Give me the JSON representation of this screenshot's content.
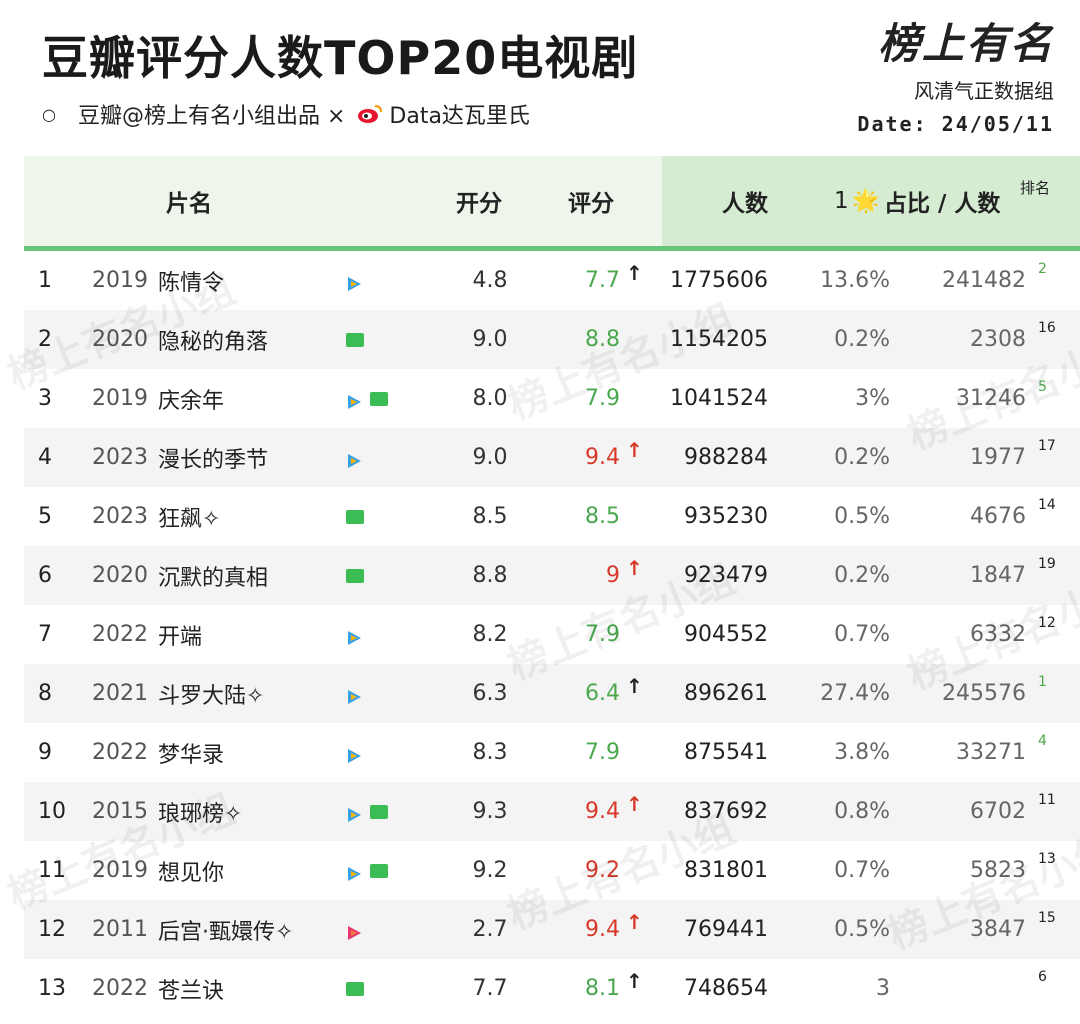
{
  "header": {
    "title": "豆瓣评分人数TOP20电视剧",
    "subtitle_left": "豆瓣@榜上有名小组出品 ×",
    "subtitle_right": "Data达瓦里氏"
  },
  "logo": {
    "brand": "榜上有名",
    "sub": "风清气正数据组",
    "date": "Date: 24/05/11"
  },
  "table": {
    "headers": {
      "name": "片名",
      "open": "开分",
      "score": "评分",
      "people": "人数",
      "share_prefix": "1",
      "share": "占比 / 人数",
      "rank": "排名"
    },
    "rows": [
      {
        "rank": "1",
        "year": "2019",
        "name": "陈情令",
        "icons": [
          "play"
        ],
        "open": "4.8",
        "score": "7.7",
        "score_color": "green",
        "arrow": "↑",
        "arrow_color": "#222",
        "people": "1775606",
        "pct": "13.6%",
        "count": "241482",
        "rk": "2",
        "rk_color": "green"
      },
      {
        "rank": "2",
        "year": "2020",
        "name": "隐秘的角落",
        "icons": [
          "block"
        ],
        "open": "9.0",
        "score": "8.8",
        "score_color": "green",
        "arrow": "",
        "arrow_color": "#222",
        "people": "1154205",
        "pct": "0.2%",
        "count": "2308",
        "rk": "16",
        "rk_color": "#222"
      },
      {
        "rank": "3",
        "year": "2019",
        "name": "庆余年",
        "icons": [
          "play",
          "block"
        ],
        "open": "8.0",
        "score": "7.9",
        "score_color": "green",
        "arrow": "",
        "arrow_color": "#222",
        "people": "1041524",
        "pct": "3%",
        "count": "31246",
        "rk": "5",
        "rk_color": "green"
      },
      {
        "rank": "4",
        "year": "2023",
        "name": "漫长的季节",
        "icons": [
          "play"
        ],
        "open": "9.0",
        "score": "9.4",
        "score_color": "red",
        "arrow": "↑",
        "arrow_color": "#d8392b",
        "people": "988284",
        "pct": "0.2%",
        "count": "1977",
        "rk": "17",
        "rk_color": "#222"
      },
      {
        "rank": "5",
        "year": "2023",
        "name": "狂飙✧",
        "icons": [
          "block"
        ],
        "open": "8.5",
        "score": "8.5",
        "score_color": "green",
        "arrow": "",
        "arrow_color": "#222",
        "people": "935230",
        "pct": "0.5%",
        "count": "4676",
        "rk": "14",
        "rk_color": "#222"
      },
      {
        "rank": "6",
        "year": "2020",
        "name": "沉默的真相",
        "icons": [
          "block"
        ],
        "open": "8.8",
        "score": "9",
        "score_color": "red",
        "arrow": "↑",
        "arrow_color": "#d8392b",
        "people": "923479",
        "pct": "0.2%",
        "count": "1847",
        "rk": "19",
        "rk_color": "#222"
      },
      {
        "rank": "7",
        "year": "2022",
        "name": "开端",
        "icons": [
          "play"
        ],
        "open": "8.2",
        "score": "7.9",
        "score_color": "green",
        "arrow": "",
        "arrow_color": "#222",
        "people": "904552",
        "pct": "0.7%",
        "count": "6332",
        "rk": "12",
        "rk_color": "#222"
      },
      {
        "rank": "8",
        "year": "2021",
        "name": "斗罗大陆✧",
        "icons": [
          "play"
        ],
        "open": "6.3",
        "score": "6.4",
        "score_color": "green",
        "arrow": "↑",
        "arrow_color": "#222",
        "people": "896261",
        "pct": "27.4%",
        "count": "245576",
        "rk": "1",
        "rk_color": "green"
      },
      {
        "rank": "9",
        "year": "2022",
        "name": "梦华录",
        "icons": [
          "play"
        ],
        "open": "8.3",
        "score": "7.9",
        "score_color": "green",
        "arrow": "",
        "arrow_color": "#222",
        "people": "875541",
        "pct": "3.8%",
        "count": "33271",
        "rk": "4",
        "rk_color": "green"
      },
      {
        "rank": "10",
        "year": "2015",
        "name": "琅琊榜✧",
        "icons": [
          "play",
          "block"
        ],
        "open": "9.3",
        "score": "9.4",
        "score_color": "red",
        "arrow": "↑",
        "arrow_color": "#d8392b",
        "people": "837692",
        "pct": "0.8%",
        "count": "6702",
        "rk": "11",
        "rk_color": "#222"
      },
      {
        "rank": "11",
        "year": "2019",
        "name": "想见你",
        "icons": [
          "play",
          "block"
        ],
        "open": "9.2",
        "score": "9.2",
        "score_color": "red",
        "arrow": "",
        "arrow_color": "#222",
        "people": "831801",
        "pct": "0.7%",
        "count": "5823",
        "rk": "13",
        "rk_color": "#222"
      },
      {
        "rank": "12",
        "year": "2011",
        "name": "后宫·甄嬛传✧",
        "icons": [
          "play-pink"
        ],
        "open": "2.7",
        "score": "9.4",
        "score_color": "red",
        "arrow": "↑",
        "arrow_color": "#d8392b",
        "people": "769441",
        "pct": "0.5%",
        "count": "3847",
        "rk": "15",
        "rk_color": "#222"
      },
      {
        "rank": "13",
        "year": "2022",
        "name": "苍兰诀",
        "icons": [
          "block"
        ],
        "open": "7.7",
        "score": "8.1",
        "score_color": "green",
        "arrow": "↑",
        "arrow_color": "#222",
        "people": "748654",
        "pct": "3",
        "count": "",
        "rk": "6",
        "rk_color": "#222"
      }
    ]
  },
  "watermark": "榜上有名小组"
}
